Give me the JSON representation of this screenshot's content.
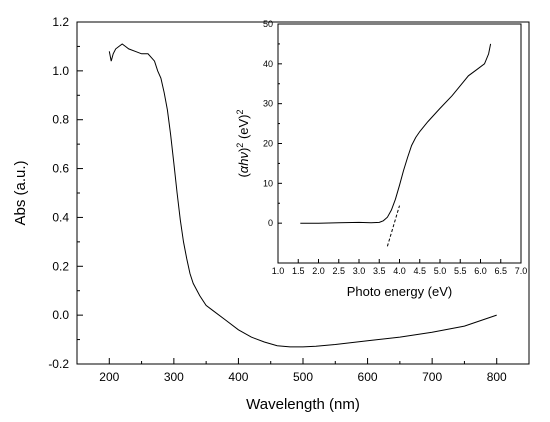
{
  "chart_data": [
    {
      "type": "line",
      "xlabel": "Wavelength (nm)",
      "ylabel": "Abs (a.u.)",
      "xlim": [
        150,
        850
      ],
      "ylim": [
        -0.2,
        1.2
      ],
      "xticks": [
        200,
        300,
        400,
        500,
        600,
        700,
        800
      ],
      "xtick_labels": [
        "200",
        "300",
        "400",
        "500",
        "600",
        "700",
        "800"
      ],
      "yticks": [
        -0.2,
        0.0,
        0.2,
        0.4,
        0.6,
        0.8,
        1.0,
        1.2
      ],
      "ytick_labels": [
        "-0.2",
        "0.0",
        "0.2",
        "0.4",
        "0.6",
        "0.8",
        "1.0",
        "1.2"
      ],
      "series": [
        {
          "x": [
            200,
            203,
            206,
            210,
            215,
            220,
            225,
            230,
            240,
            250,
            260,
            270,
            275,
            280,
            285,
            290,
            295,
            300,
            305,
            310,
            315,
            320,
            325,
            330,
            340,
            350,
            360,
            380,
            400,
            420,
            440,
            460,
            480,
            500,
            520,
            550,
            600,
            650,
            700,
            750,
            800
          ],
          "y": [
            1.08,
            1.04,
            1.07,
            1.09,
            1.1,
            1.11,
            1.1,
            1.09,
            1.08,
            1.07,
            1.07,
            1.04,
            1.0,
            0.97,
            0.91,
            0.84,
            0.74,
            0.62,
            0.5,
            0.39,
            0.3,
            0.23,
            0.17,
            0.13,
            0.08,
            0.04,
            0.02,
            -0.02,
            -0.06,
            -0.09,
            -0.11,
            -0.125,
            -0.13,
            -0.13,
            -0.127,
            -0.12,
            -0.105,
            -0.09,
            -0.07,
            -0.045,
            0.0
          ]
        }
      ]
    },
    {
      "type": "line",
      "xlabel": "Photo energy (eV)",
      "ylabel": "(αhν)² (eV)²",
      "ylabel_parts": {
        "open": "(",
        "alpha": "α",
        "hv": "hν",
        "close": ")",
        "exp1": "2",
        "unit": " (eV)",
        "exp2": "2"
      },
      "xlim": [
        1.0,
        7.0
      ],
      "ylim": [
        -10,
        50
      ],
      "xticks": [
        1.0,
        1.5,
        2.0,
        2.5,
        3.0,
        3.5,
        4.0,
        4.5,
        5.0,
        5.5,
        6.0,
        6.5,
        7.0
      ],
      "xtick_labels": [
        "1.0",
        "1.5",
        "2.0",
        "2.5",
        "3.0",
        "3.5",
        "4.0",
        "4.5",
        "5.0",
        "5.5",
        "6.0",
        "6.5",
        "7.0"
      ],
      "yticks": [
        0,
        10,
        20,
        30,
        40,
        50
      ],
      "ytick_labels": [
        "0",
        "10",
        "20",
        "30",
        "40",
        "50"
      ],
      "series": [
        {
          "x": [
            1.55,
            2.0,
            2.5,
            3.0,
            3.3,
            3.5,
            3.6,
            3.7,
            3.8,
            3.9,
            4.0,
            4.1,
            4.2,
            4.3,
            4.4,
            4.5,
            4.7,
            5.0,
            5.3,
            5.5,
            5.7,
            5.9,
            6.1,
            6.2,
            6.25
          ],
          "y": [
            0.0,
            0.0,
            0.1,
            0.2,
            0.1,
            0.2,
            0.6,
            1.5,
            3.3,
            6.0,
            9.5,
            13.2,
            16.5,
            19.5,
            21.5,
            23.0,
            25.5,
            28.8,
            32.0,
            34.5,
            37.0,
            38.5,
            40.0,
            42.5,
            45.0
          ]
        }
      ],
      "fit_line": {
        "x": [
          3.7,
          4.0
        ],
        "y": [
          -5.8,
          4.4
        ],
        "style": "dashed"
      }
    }
  ]
}
